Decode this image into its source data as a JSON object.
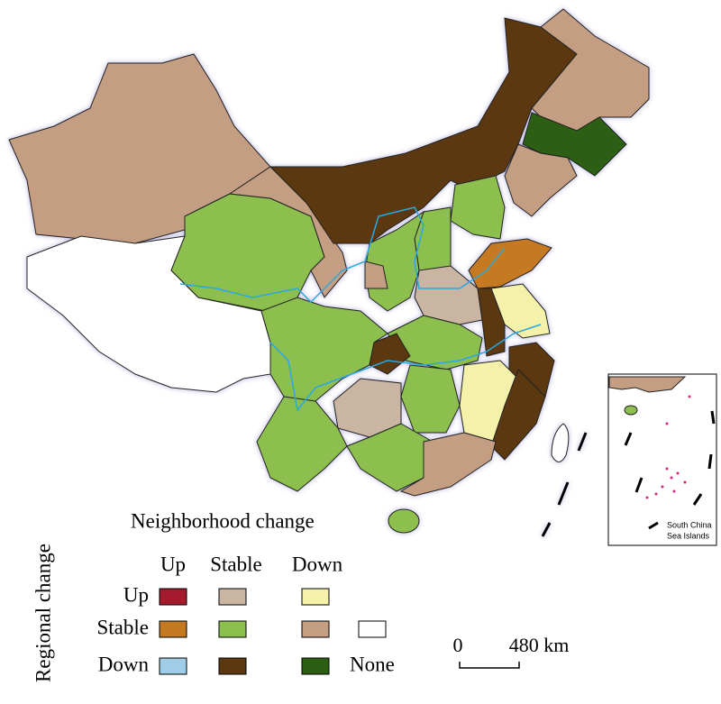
{
  "legend": {
    "title": "Neighborhood change",
    "row_title": "Regional change",
    "columns": [
      "Up",
      "Stable",
      "Down"
    ],
    "rows": [
      {
        "label": "Up",
        "colors": [
          "#a41b2e",
          "#c9b5a2",
          "#f4f1ab"
        ]
      },
      {
        "label": "Stable",
        "colors": [
          "#c57a22",
          "#8dbf4e",
          "#c49e82"
        ]
      },
      {
        "label": "Down",
        "colors": [
          "#9fcde6",
          "#5b3810",
          "#2c5f14"
        ]
      }
    ],
    "none": {
      "label": "None",
      "color": "#ffffff"
    }
  },
  "scale": {
    "start": "0",
    "end": "480 km"
  },
  "inset": {
    "label_lines": [
      "South China",
      "Sea Islands"
    ]
  }
}
